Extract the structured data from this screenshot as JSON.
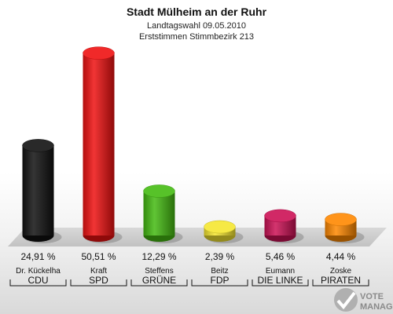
{
  "chart_data": {
    "type": "bar",
    "title": "Stadt Mülheim an der Ruhr",
    "subtitle_1": "Landtagswahl 09.05.2010",
    "subtitle_2": "Erststimmen Stimmbezirk 213",
    "unit": "%",
    "ylim": [
      0,
      55
    ],
    "categories": [
      {
        "candidate": "Dr. Kückelha",
        "party": "CDU",
        "value": 24.91,
        "label": "24,91 %",
        "color": "#111111"
      },
      {
        "candidate": "Kraft",
        "party": "SPD",
        "value": 50.51,
        "label": "50,51 %",
        "color": "#ee1111"
      },
      {
        "candidate": "Steffens",
        "party": "GRÜNE",
        "value": 12.29,
        "label": "12,29 %",
        "color": "#44bb11"
      },
      {
        "candidate": "Beitz",
        "party": "FDP",
        "value": 2.39,
        "label": "2,39 %",
        "color": "#f5e630"
      },
      {
        "candidate": "Eumann",
        "party": "DIE LINKE",
        "value": 5.46,
        "label": "5,46 %",
        "color": "#cc1155"
      },
      {
        "candidate": "Zoske",
        "party": "PIRATEN",
        "value": 4.44,
        "label": "4,44 %",
        "color": "#ff8800"
      }
    ]
  },
  "watermark": {
    "line1": "VOTE",
    "line2": "MANAGER"
  }
}
